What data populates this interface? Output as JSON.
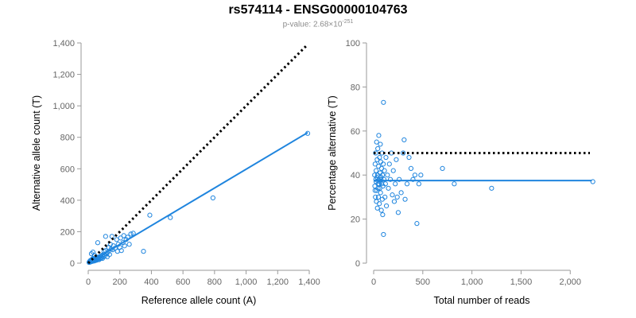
{
  "title": "rs574114 - ENSG00000104763",
  "subtitle": {
    "prefix": "p-value: 2.68×10",
    "exponent": "-251"
  },
  "colors": {
    "points": "#1f85de",
    "fit_line": "#1f85de",
    "reference_line": "#000000",
    "axis": "#9a9a9a",
    "tick_label": "#666666"
  },
  "chart_data": [
    {
      "type": "scatter",
      "xlabel": "Reference allele count (A)",
      "ylabel": "Alternative allele count (T)",
      "xlim": [
        0,
        1400
      ],
      "ylim": [
        0,
        1400
      ],
      "xticks": [
        0,
        200,
        400,
        600,
        800,
        1000,
        1200,
        1400
      ],
      "xtick_labels": [
        "0",
        "200",
        "400",
        "600",
        "800",
        "1,000",
        "1,200",
        "1,400"
      ],
      "yticks": [
        0,
        200,
        400,
        600,
        800,
        1000,
        1200,
        1400
      ],
      "ytick_labels": [
        "0",
        "200",
        "400",
        "600",
        "800",
        "1,000",
        "1,200",
        "1,400"
      ],
      "reference_line": {
        "style": "dotted",
        "points": [
          [
            0,
            0
          ],
          [
            1380,
            1380
          ]
        ]
      },
      "fit_line": {
        "style": "solid",
        "points": [
          [
            0,
            0
          ],
          [
            1390,
            830
          ]
        ]
      },
      "points": [
        [
          5,
          5
        ],
        [
          8,
          10
        ],
        [
          10,
          6
        ],
        [
          12,
          15
        ],
        [
          15,
          8
        ],
        [
          15,
          18
        ],
        [
          18,
          12
        ],
        [
          20,
          20
        ],
        [
          20,
          10
        ],
        [
          22,
          14
        ],
        [
          25,
          18
        ],
        [
          25,
          25
        ],
        [
          28,
          12
        ],
        [
          30,
          20
        ],
        [
          30,
          30
        ],
        [
          32,
          15
        ],
        [
          35,
          22
        ],
        [
          38,
          18
        ],
        [
          40,
          28
        ],
        [
          40,
          14
        ],
        [
          42,
          25
        ],
        [
          45,
          20
        ],
        [
          48,
          30
        ],
        [
          50,
          22
        ],
        [
          50,
          35
        ],
        [
          52,
          18
        ],
        [
          55,
          28
        ],
        [
          58,
          32
        ],
        [
          60,
          25
        ],
        [
          62,
          38
        ],
        [
          65,
          30
        ],
        [
          68,
          22
        ],
        [
          70,
          35
        ],
        [
          72,
          40
        ],
        [
          75,
          28
        ],
        [
          78,
          32
        ],
        [
          80,
          45
        ],
        [
          85,
          35
        ],
        [
          88,
          50
        ],
        [
          90,
          30
        ],
        [
          95,
          40
        ],
        [
          100,
          55
        ],
        [
          100,
          75
        ],
        [
          105,
          45
        ],
        [
          110,
          80
        ],
        [
          115,
          60
        ],
        [
          120,
          40
        ],
        [
          125,
          70
        ],
        [
          130,
          100
        ],
        [
          135,
          55
        ],
        [
          140,
          120
        ],
        [
          145,
          90
        ],
        [
          150,
          170
        ],
        [
          155,
          85
        ],
        [
          160,
          110
        ],
        [
          170,
          95
        ],
        [
          180,
          150
        ],
        [
          185,
          75
        ],
        [
          190,
          120
        ],
        [
          200,
          100
        ],
        [
          205,
          160
        ],
        [
          210,
          80
        ],
        [
          220,
          130
        ],
        [
          225,
          175
        ],
        [
          230,
          110
        ],
        [
          240,
          150
        ],
        [
          250,
          165
        ],
        [
          260,
          120
        ],
        [
          270,
          185
        ],
        [
          285,
          190
        ],
        [
          350,
          75
        ],
        [
          390,
          305
        ],
        [
          520,
          290
        ],
        [
          790,
          415
        ],
        [
          1390,
          825
        ],
        [
          30,
          70
        ],
        [
          60,
          130
        ],
        [
          110,
          170
        ],
        [
          20,
          60
        ],
        [
          40,
          50
        ]
      ]
    },
    {
      "type": "scatter",
      "xlabel": "Total number of reads",
      "ylabel": "Percentage alternative (T)",
      "xlim": [
        0,
        2200
      ],
      "ylim": [
        0,
        100
      ],
      "xticks": [
        0,
        500,
        1000,
        1500,
        2000
      ],
      "xtick_labels": [
        "0",
        "500",
        "1,000",
        "1,500",
        "2,000"
      ],
      "yticks": [
        0,
        20,
        40,
        60,
        80,
        100
      ],
      "ytick_labels": [
        "0",
        "20",
        "40",
        "60",
        "80",
        "100"
      ],
      "reference_line": {
        "style": "dotted",
        "points": [
          [
            0,
            50
          ],
          [
            2200,
            50
          ]
        ]
      },
      "fit_line": {
        "style": "solid",
        "points": [
          [
            0,
            37.5
          ],
          [
            2220,
            37.5
          ]
        ]
      },
      "points": [
        [
          10,
          40
        ],
        [
          12,
          35
        ],
        [
          15,
          45
        ],
        [
          18,
          30
        ],
        [
          20,
          50
        ],
        [
          22,
          38
        ],
        [
          25,
          42
        ],
        [
          28,
          28
        ],
        [
          30,
          55
        ],
        [
          32,
          33
        ],
        [
          35,
          47
        ],
        [
          38,
          25
        ],
        [
          40,
          40
        ],
        [
          42,
          52
        ],
        [
          45,
          36
        ],
        [
          48,
          30
        ],
        [
          50,
          44
        ],
        [
          52,
          58
        ],
        [
          55,
          38
        ],
        [
          58,
          27
        ],
        [
          60,
          48
        ],
        [
          62,
          34
        ],
        [
          65,
          41
        ],
        [
          68,
          54
        ],
        [
          70,
          32
        ],
        [
          72,
          46
        ],
        [
          75,
          38
        ],
        [
          78,
          24
        ],
        [
          80,
          43
        ],
        [
          82,
          36
        ],
        [
          85,
          50
        ],
        [
          88,
          29
        ],
        [
          90,
          40
        ],
        [
          92,
          22
        ],
        [
          95,
          35
        ],
        [
          98,
          45
        ],
        [
          100,
          73
        ],
        [
          100,
          13
        ],
        [
          105,
          38
        ],
        [
          110,
          42
        ],
        [
          115,
          30
        ],
        [
          120,
          36
        ],
        [
          125,
          48
        ],
        [
          130,
          26
        ],
        [
          140,
          40
        ],
        [
          150,
          34
        ],
        [
          160,
          45
        ],
        [
          170,
          38
        ],
        [
          180,
          50
        ],
        [
          190,
          31
        ],
        [
          200,
          42
        ],
        [
          210,
          28
        ],
        [
          220,
          36
        ],
        [
          230,
          47
        ],
        [
          240,
          30
        ],
        [
          250,
          23
        ],
        [
          260,
          38
        ],
        [
          280,
          32
        ],
        [
          300,
          50
        ],
        [
          310,
          56
        ],
        [
          320,
          29
        ],
        [
          340,
          36
        ],
        [
          360,
          48
        ],
        [
          380,
          43
        ],
        [
          400,
          38
        ],
        [
          420,
          40
        ],
        [
          440,
          18
        ],
        [
          460,
          36
        ],
        [
          480,
          40
        ],
        [
          700,
          43
        ],
        [
          820,
          36
        ],
        [
          1200,
          34
        ],
        [
          2230,
          37
        ],
        [
          15,
          33
        ],
        [
          25,
          37
        ],
        [
          35,
          39
        ],
        [
          45,
          34
        ],
        [
          55,
          36
        ],
        [
          65,
          37
        ],
        [
          75,
          39
        ]
      ]
    }
  ]
}
